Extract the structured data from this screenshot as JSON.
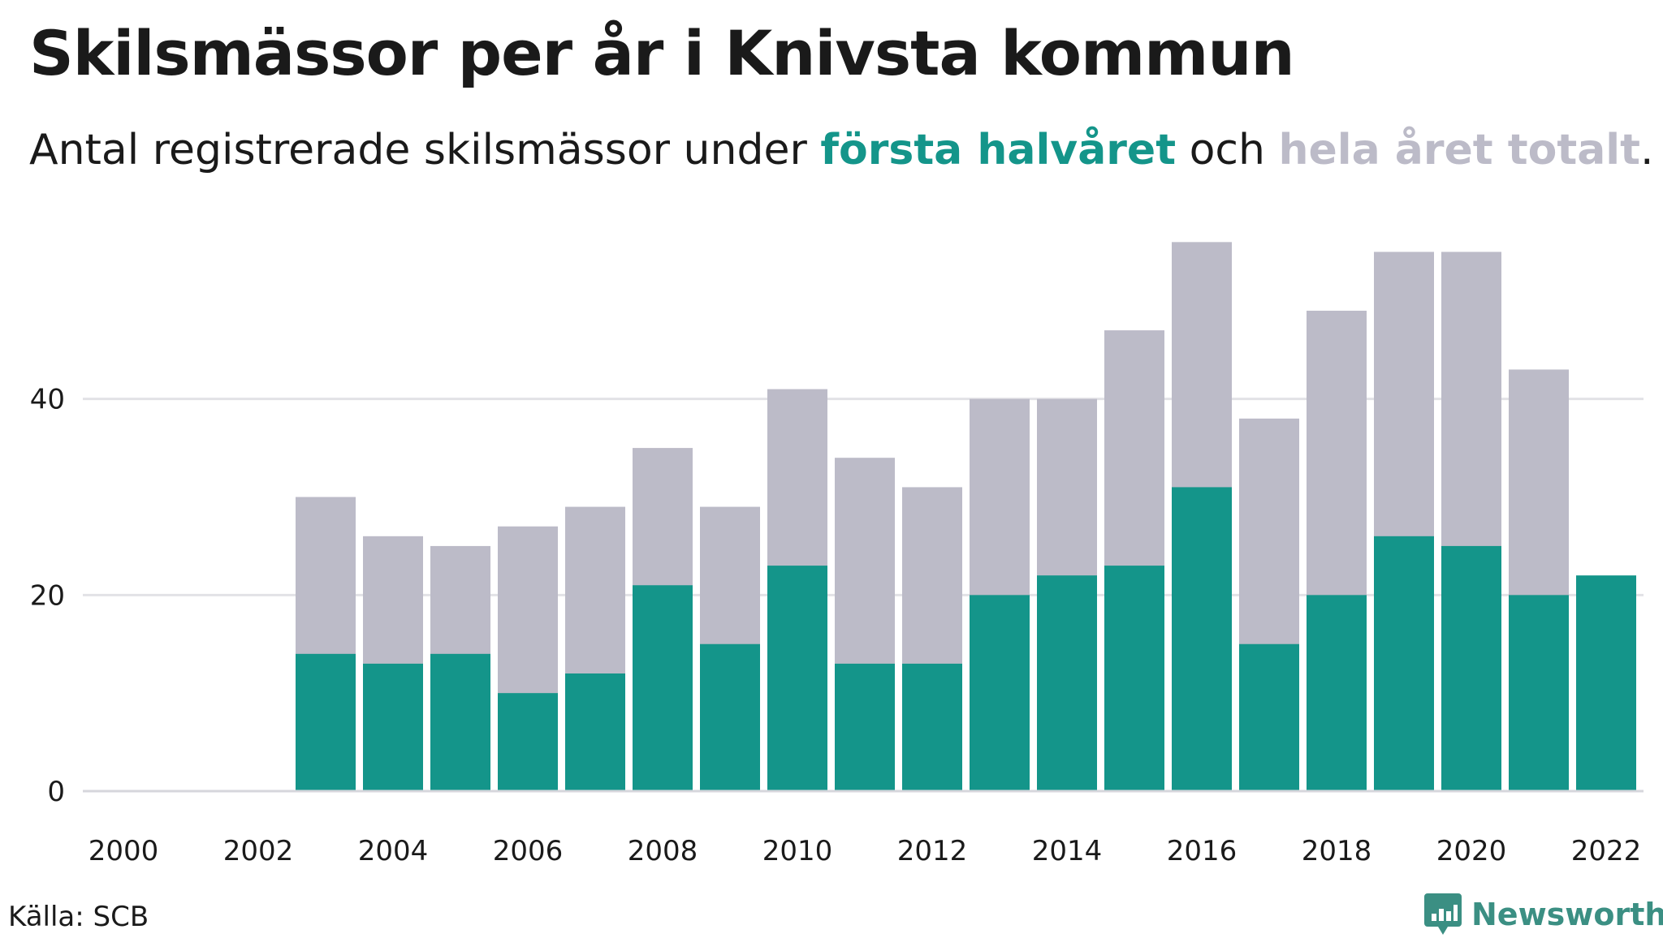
{
  "title": "Skilsmässor per år i Knivsta kommun",
  "subtitle": {
    "prefix": "Antal registrerade skilsmässor under ",
    "first_half": "första halvåret",
    "middle": " och ",
    "full_year": "hela året totalt",
    "suffix": "."
  },
  "source": "Källa: SCB",
  "brand": {
    "name": "Newsworthy",
    "icon": "newsworthy-logo-icon"
  },
  "colors": {
    "first_half": "#14958a",
    "full_year": "#bcbbc8",
    "grid": "#e2e2e6",
    "axis": "#d6d6dc",
    "text": "#1a1a1a"
  },
  "chart_data": {
    "type": "bar",
    "stacking": "overlay",
    "title": "Skilsmässor per år i Knivsta kommun",
    "subtitle": "Antal registrerade skilsmässor under första halvåret och hela året totalt.",
    "categories": [
      2000,
      2001,
      2002,
      2003,
      2004,
      2005,
      2006,
      2007,
      2008,
      2009,
      2010,
      2011,
      2012,
      2013,
      2014,
      2015,
      2016,
      2017,
      2018,
      2019,
      2020,
      2021,
      2022
    ],
    "series": [
      {
        "name": "hela året totalt",
        "color": "#bcbbc8",
        "values": [
          null,
          null,
          null,
          30,
          26,
          25,
          27,
          29,
          35,
          29,
          41,
          34,
          31,
          40,
          40,
          47,
          56,
          38,
          49,
          55,
          55,
          43,
          null
        ]
      },
      {
        "name": "första halvåret",
        "color": "#14958a",
        "values": [
          null,
          null,
          null,
          14,
          13,
          14,
          10,
          12,
          21,
          15,
          23,
          13,
          13,
          20,
          22,
          23,
          31,
          15,
          20,
          26,
          25,
          20,
          22
        ]
      }
    ],
    "x_ticks": [
      "2000",
      "2002",
      "2004",
      "2006",
      "2008",
      "2010",
      "2012",
      "2014",
      "2016",
      "2018",
      "2020",
      "2022"
    ],
    "y_ticks": [
      0,
      20,
      40
    ],
    "ylim": [
      0,
      60
    ],
    "xlabel": "",
    "ylabel": "",
    "grid": true,
    "legend": "in subtitle"
  }
}
